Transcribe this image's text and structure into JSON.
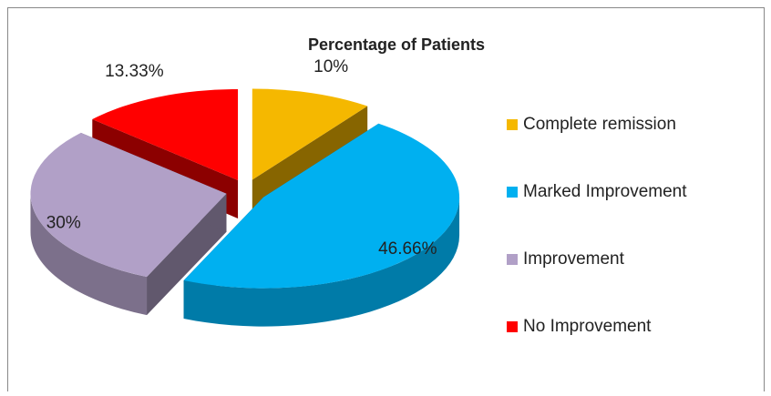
{
  "chart_data": {
    "type": "pie",
    "title": "Percentage of Patients",
    "categories": [
      "Complete remission",
      "Marked Improvement",
      "Improvement",
      "No Improvement"
    ],
    "values": [
      10,
      46.66,
      30,
      13.33
    ],
    "value_labels": [
      "10%",
      "46.66%",
      "30%",
      "13.33%"
    ],
    "colors": [
      "#f5b800",
      "#00b0f0",
      "#b1a0c7",
      "#ff0000"
    ],
    "legend": "right"
  }
}
